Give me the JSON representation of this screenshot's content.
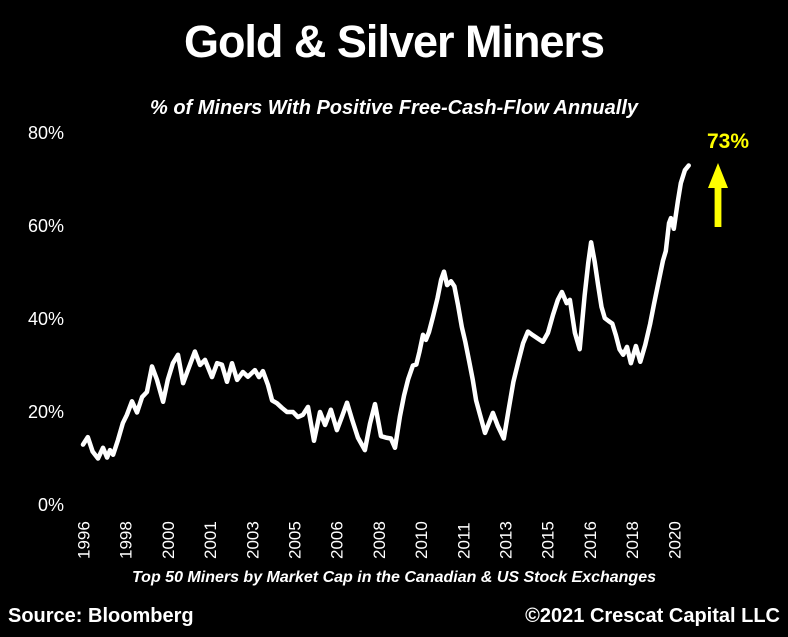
{
  "colors": {
    "background": "#000000",
    "foreground": "#FFFFFF",
    "accent_yellow": "#FFFF00"
  },
  "chart_data": {
    "type": "line",
    "title": "Gold & Silver Miners",
    "subtitle": "% of Miners With Positive Free-Cash-Flow Annually",
    "footnote": "Top 50 Miners by Market Cap in the Canadian & US Stock Exchanges",
    "source": "Source: Bloomberg",
    "copyright": "©2021 Crescat Capital LLC",
    "grid": false,
    "legend": "none",
    "line_color": "#FFFFFF",
    "y_axis": {
      "range": [
        0,
        80
      ],
      "ticks": [
        {
          "value": 80,
          "label": "80%"
        },
        {
          "value": 60,
          "label": "60%"
        },
        {
          "value": 40,
          "label": "40%"
        },
        {
          "value": 20,
          "label": "20%"
        },
        {
          "value": 0,
          "label": "0%"
        }
      ]
    },
    "x_axis": {
      "start_year": 1996,
      "tick_interval_years": 1.75,
      "tick_labels": [
        "1996",
        "1998",
        "2000",
        "2001",
        "2003",
        "2005",
        "2006",
        "2008",
        "2010",
        "2011",
        "2013",
        "2015",
        "2016",
        "2018",
        "2020"
      ]
    },
    "annotation": {
      "label": "73%",
      "value": 73,
      "icon": "up-arrow",
      "color": "#FFFF00"
    },
    "series": [
      {
        "name": "% of miners with positive free-cash-flow",
        "color": "#FFFFFF",
        "points": [
          [
            1996.0,
            13.0
          ],
          [
            1996.2,
            14.6
          ],
          [
            1996.4,
            11.5
          ],
          [
            1996.62,
            10.0
          ],
          [
            1996.83,
            12.3
          ],
          [
            1997.0,
            10.2
          ],
          [
            1997.12,
            11.8
          ],
          [
            1997.25,
            10.8
          ],
          [
            1997.45,
            14.0
          ],
          [
            1997.65,
            17.6
          ],
          [
            1997.82,
            19.4
          ],
          [
            1998.03,
            22.3
          ],
          [
            1998.24,
            19.9
          ],
          [
            1998.45,
            23.2
          ],
          [
            1998.65,
            24.3
          ],
          [
            1998.86,
            29.8
          ],
          [
            1999.07,
            26.9
          ],
          [
            1999.32,
            22.2
          ],
          [
            1999.52,
            27.0
          ],
          [
            1999.73,
            30.5
          ],
          [
            1999.94,
            32.3
          ],
          [
            2000.15,
            26.2
          ],
          [
            2000.35,
            29.0
          ],
          [
            2000.64,
            33.0
          ],
          [
            2000.85,
            30.1
          ],
          [
            2001.06,
            31.2
          ],
          [
            2001.35,
            27.5
          ],
          [
            2001.56,
            30.5
          ],
          [
            2001.76,
            30.2
          ],
          [
            2001.97,
            26.5
          ],
          [
            2002.18,
            30.5
          ],
          [
            2002.39,
            26.9
          ],
          [
            2002.63,
            28.6
          ],
          [
            2002.84,
            27.6
          ],
          [
            2003.13,
            29.0
          ],
          [
            2003.3,
            27.5
          ],
          [
            2003.46,
            28.8
          ],
          [
            2003.67,
            25.8
          ],
          [
            2003.84,
            22.5
          ],
          [
            2004.04,
            21.9
          ],
          [
            2004.25,
            20.9
          ],
          [
            2004.46,
            20.0
          ],
          [
            2004.71,
            20.0
          ],
          [
            2004.91,
            18.9
          ],
          [
            2005.12,
            19.4
          ],
          [
            2005.33,
            21.1
          ],
          [
            2005.58,
            13.8
          ],
          [
            2005.83,
            20.0
          ],
          [
            2006.04,
            17.2
          ],
          [
            2006.28,
            20.5
          ],
          [
            2006.53,
            16.1
          ],
          [
            2006.74,
            19.0
          ],
          [
            2006.95,
            22.0
          ],
          [
            2007.15,
            18.5
          ],
          [
            2007.4,
            14.5
          ],
          [
            2007.69,
            11.8
          ],
          [
            2007.9,
            17.5
          ],
          [
            2008.11,
            21.7
          ],
          [
            2008.36,
            14.8
          ],
          [
            2008.56,
            14.5
          ],
          [
            2008.77,
            14.3
          ],
          [
            2008.94,
            12.3
          ],
          [
            2009.14,
            19.0
          ],
          [
            2009.31,
            23.5
          ],
          [
            2009.48,
            27.0
          ],
          [
            2009.68,
            30.0
          ],
          [
            2009.82,
            30.2
          ],
          [
            2009.95,
            32.9
          ],
          [
            2010.1,
            36.6
          ],
          [
            2010.22,
            35.5
          ],
          [
            2010.35,
            37.2
          ],
          [
            2010.51,
            40.4
          ],
          [
            2010.7,
            44.5
          ],
          [
            2010.85,
            48.4
          ],
          [
            2010.97,
            50.2
          ],
          [
            2011.1,
            47.3
          ],
          [
            2011.26,
            48.1
          ],
          [
            2011.4,
            47.0
          ],
          [
            2011.55,
            43.0
          ],
          [
            2011.71,
            38.3
          ],
          [
            2011.86,
            35.0
          ],
          [
            2012.01,
            31.0
          ],
          [
            2012.16,
            27.0
          ],
          [
            2012.3,
            22.5
          ],
          [
            2012.46,
            19.5
          ],
          [
            2012.67,
            15.5
          ],
          [
            2013.0,
            19.8
          ],
          [
            2013.2,
            17.0
          ],
          [
            2013.45,
            14.3
          ],
          [
            2013.65,
            20.5
          ],
          [
            2013.85,
            26.5
          ],
          [
            2014.05,
            30.8
          ],
          [
            2014.25,
            34.8
          ],
          [
            2014.45,
            37.3
          ],
          [
            2014.66,
            36.5
          ],
          [
            2014.86,
            35.8
          ],
          [
            2015.07,
            35.1
          ],
          [
            2015.28,
            37.0
          ],
          [
            2015.49,
            40.9
          ],
          [
            2015.69,
            44.1
          ],
          [
            2015.86,
            45.8
          ],
          [
            2016.06,
            43.4
          ],
          [
            2016.19,
            44.1
          ],
          [
            2016.4,
            37.0
          ],
          [
            2016.6,
            33.5
          ],
          [
            2016.8,
            45.0
          ],
          [
            2016.95,
            52.0
          ],
          [
            2017.07,
            56.5
          ],
          [
            2017.22,
            52.3
          ],
          [
            2017.36,
            47.3
          ],
          [
            2017.5,
            42.6
          ],
          [
            2017.64,
            40.2
          ],
          [
            2017.79,
            39.6
          ],
          [
            2017.95,
            39.0
          ],
          [
            2018.1,
            36.5
          ],
          [
            2018.25,
            33.5
          ],
          [
            2018.4,
            32.3
          ],
          [
            2018.56,
            34.0
          ],
          [
            2018.72,
            30.5
          ],
          [
            2018.93,
            34.2
          ],
          [
            2019.11,
            30.8
          ],
          [
            2019.32,
            34.5
          ],
          [
            2019.52,
            39.0
          ],
          [
            2019.68,
            43.2
          ],
          [
            2019.87,
            48.0
          ],
          [
            2020.05,
            52.5
          ],
          [
            2020.17,
            54.6
          ],
          [
            2020.3,
            60.6
          ],
          [
            2020.38,
            61.7
          ],
          [
            2020.5,
            59.4
          ],
          [
            2020.67,
            65.4
          ],
          [
            2020.79,
            69.2
          ],
          [
            2020.96,
            72.0
          ],
          [
            2021.12,
            73.0
          ]
        ]
      }
    ]
  }
}
